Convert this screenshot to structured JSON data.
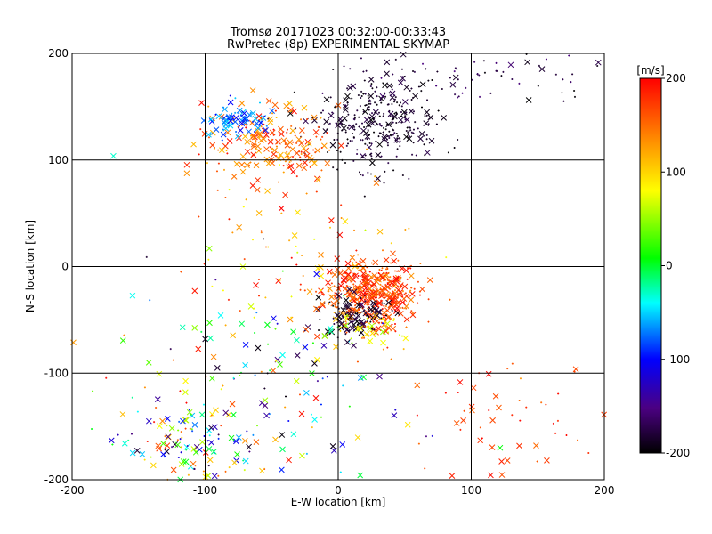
{
  "chart_data": {
    "type": "scatter",
    "title": "Tromsø 20171023 00:32:00-00:33:43",
    "subtitle": "RwPretec (8p) EXPERIMENTAL SKYMAP",
    "xlabel": "E-W location [km]",
    "ylabel": "N-S location [km]",
    "xlim": [
      -200,
      200
    ],
    "ylim": [
      -200,
      200
    ],
    "x_ticks": [
      -200,
      -100,
      0,
      100,
      200
    ],
    "y_ticks": [
      -200,
      -100,
      0,
      100,
      200
    ],
    "grid": true,
    "colorbar": {
      "label": "[m/s]",
      "range": [
        -200,
        200
      ],
      "ticks": [
        -200,
        -100,
        0,
        100,
        200
      ],
      "colormap": "rainbow"
    },
    "marker_legend": {
      "dot": "+",
      "cross": "×"
    },
    "clusters": [
      {
        "cx": 25,
        "cy": -25,
        "sx": 18,
        "sy": 16,
        "n": 420,
        "vmin": 130,
        "vmax": 200,
        "cross_frac": 0.45
      },
      {
        "cx": 12,
        "cy": -45,
        "sx": 14,
        "sy": 10,
        "n": 110,
        "vmin": -200,
        "vmax": -170,
        "cross_frac": 0.5
      },
      {
        "cx": 25,
        "cy": -60,
        "sx": 12,
        "sy": 8,
        "n": 40,
        "vmin": 40,
        "vmax": 120,
        "cross_frac": 0.5
      },
      {
        "cx": 30,
        "cy": 135,
        "sx": 22,
        "sy": 22,
        "n": 340,
        "vmin": -200,
        "vmax": -170,
        "cross_frac": 0.2
      },
      {
        "cx": 100,
        "cy": 180,
        "sx": 50,
        "sy": 14,
        "n": 80,
        "vmin": -200,
        "vmax": -150,
        "cross_frac": 0.2
      },
      {
        "cx": -50,
        "cy": 115,
        "sx": 25,
        "sy": 18,
        "n": 200,
        "vmin": 110,
        "vmax": 200,
        "cross_frac": 0.5
      },
      {
        "cx": -75,
        "cy": 138,
        "sx": 12,
        "sy": 9,
        "n": 70,
        "vmin": -110,
        "vmax": -50,
        "cross_frac": 0.6
      },
      {
        "cx": -110,
        "cy": -170,
        "sx": 25,
        "sy": 20,
        "n": 120,
        "vmin": -200,
        "vmax": 200,
        "cross_frac": 0.6
      },
      {
        "cx": -60,
        "cy": -110,
        "sx": 55,
        "sy": 60,
        "n": 180,
        "vmin": -200,
        "vmax": 200,
        "cross_frac": 0.5
      },
      {
        "cx": 120,
        "cy": -150,
        "sx": 40,
        "sy": 35,
        "n": 60,
        "vmin": 150,
        "vmax": 200,
        "cross_frac": 0.4
      },
      {
        "cx": -20,
        "cy": 20,
        "sx": 45,
        "sy": 35,
        "n": 80,
        "vmin": 60,
        "vmax": 200,
        "cross_frac": 0.3
      }
    ]
  }
}
